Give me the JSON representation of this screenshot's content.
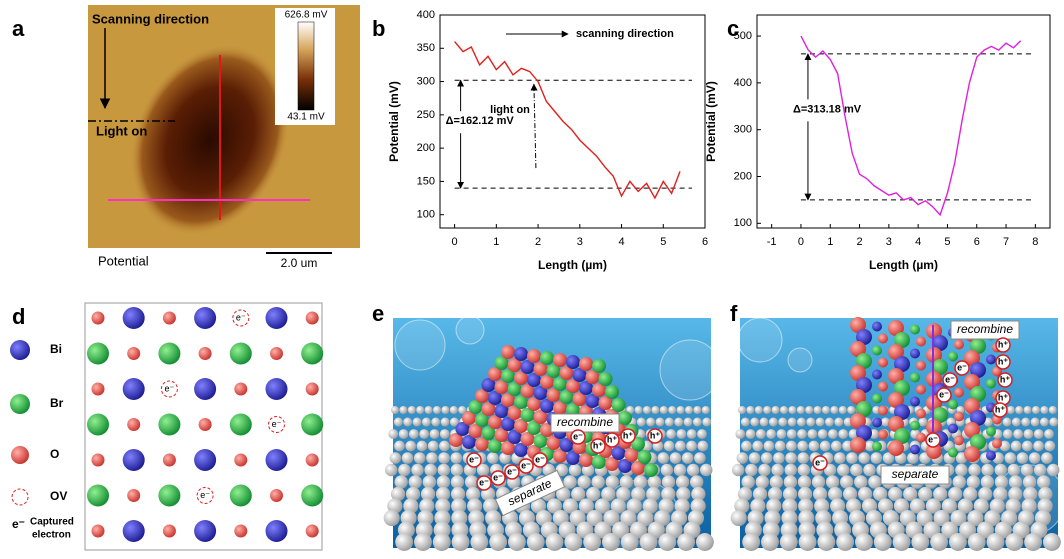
{
  "panel_labels": [
    "a",
    "b",
    "c",
    "d",
    "e",
    "f"
  ],
  "afm": {
    "scan_text": "Scanning direction",
    "light_text": "Light on",
    "caption": "Potential",
    "scale_bar": "2.0 um",
    "colorbar_max": "626.8 mV",
    "colorbar_min": "43.1 mV"
  },
  "chart_data": [
    {
      "type": "line",
      "x_label": "Length (µm)",
      "y_label": "Potential (mV)",
      "color": "#e0201c",
      "x": [
        0,
        0.2,
        0.4,
        0.6,
        0.8,
        1.0,
        1.2,
        1.4,
        1.6,
        1.8,
        2.0,
        2.2,
        2.4,
        2.6,
        2.8,
        3.0,
        3.2,
        3.4,
        3.6,
        3.8,
        4.0,
        4.2,
        4.4,
        4.6,
        4.8,
        5.0,
        5.2,
        5.4
      ],
      "values": [
        360,
        345,
        352,
        325,
        338,
        318,
        330,
        310,
        320,
        315,
        300,
        270,
        255,
        240,
        228,
        212,
        200,
        188,
        172,
        158,
        128,
        150,
        135,
        147,
        125,
        150,
        132,
        165
      ],
      "xlim": [
        -0.35,
        6
      ],
      "ylim": [
        80,
        400
      ],
      "xticks": [
        0,
        1,
        2,
        3,
        4,
        5,
        6
      ],
      "yticks": [
        100,
        150,
        200,
        250,
        300,
        350,
        400
      ],
      "ref_lines": [
        302,
        140
      ],
      "scan_label": "scanning direction",
      "light_label": "light on",
      "delta_label": "Δ=162.12 mV"
    },
    {
      "type": "line",
      "x_label": "Length (µm)",
      "y_label": "Potential (mV)",
      "color": "#e020e0",
      "x": [
        0,
        0.25,
        0.5,
        0.75,
        1,
        1.25,
        1.5,
        1.75,
        2,
        2.25,
        2.5,
        2.75,
        3,
        3.25,
        3.5,
        3.75,
        4,
        4.25,
        4.5,
        4.75,
        5,
        5.25,
        5.5,
        5.75,
        6,
        6.25,
        6.5,
        6.75,
        7,
        7.25,
        7.5
      ],
      "values": [
        500,
        470,
        455,
        468,
        450,
        420,
        330,
        250,
        205,
        195,
        180,
        170,
        160,
        165,
        150,
        155,
        140,
        148,
        135,
        118,
        165,
        230,
        320,
        400,
        455,
        470,
        478,
        470,
        485,
        475,
        490
      ],
      "xlim": [
        -1.5,
        8.5
      ],
      "ylim": [
        90,
        545
      ],
      "xticks": [
        -1,
        0,
        1,
        2,
        3,
        4,
        5,
        6,
        7,
        8
      ],
      "yticks": [
        100,
        200,
        300,
        400,
        500
      ],
      "ref_lines": [
        462,
        150
      ],
      "delta_label": "Δ=313.18 mV"
    }
  ],
  "lattice_legend": [
    {
      "label": "Bi"
    },
    {
      "label": "Br"
    },
    {
      "label": "O"
    },
    {
      "label": "OV"
    },
    {
      "symbol": "e⁻",
      "lines": [
        "Captured",
        "electron"
      ]
    }
  ],
  "illustration_e": {
    "recombine": "recombine",
    "separate": "separate",
    "electron": "e⁻",
    "hole": "h⁺"
  },
  "illustration_f": {
    "recombine": "recombine",
    "separate": "separate",
    "electron": "e⁻",
    "hole": "h⁺"
  }
}
